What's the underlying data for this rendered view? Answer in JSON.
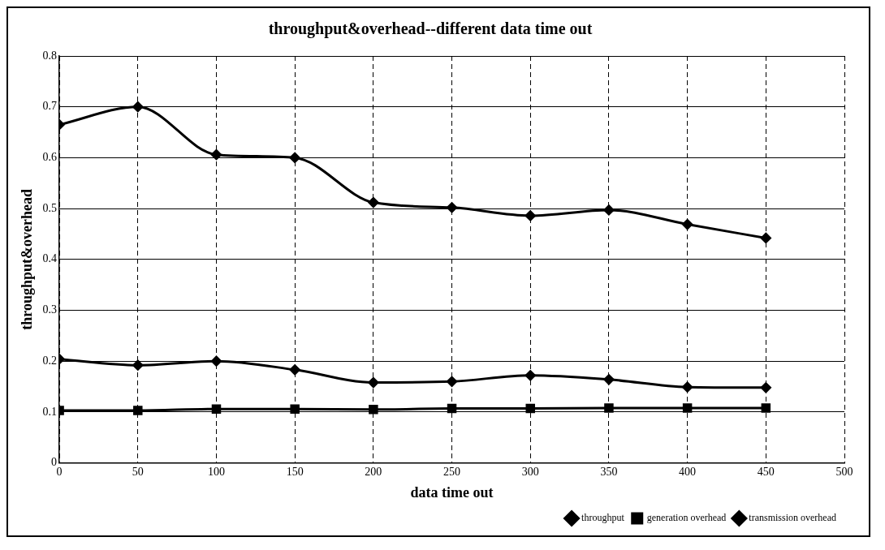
{
  "chart_data": {
    "type": "line",
    "title": "throughput&overhead--different data time out",
    "xlabel": "data time out",
    "ylabel": "throughput&overhead",
    "x": [
      0,
      50,
      100,
      150,
      200,
      250,
      300,
      350,
      400,
      450
    ],
    "series": [
      {
        "name": "throughput",
        "color": "#000000",
        "marker": "diamond",
        "values": [
          0.665,
          0.7,
          0.606,
          0.6,
          0.512,
          0.502,
          0.486,
          0.497,
          0.469,
          0.442
        ]
      },
      {
        "name": "generation overhead",
        "color": "#000000",
        "marker": "square",
        "values": [
          0.103,
          0.103,
          0.106,
          0.106,
          0.105,
          0.107,
          0.107,
          0.108,
          0.108,
          0.108
        ]
      },
      {
        "name": "transmission overhead",
        "color": "#000000",
        "marker": "diamond",
        "values": [
          0.204,
          0.192,
          0.2,
          0.183,
          0.158,
          0.16,
          0.172,
          0.164,
          0.149,
          0.148
        ]
      }
    ],
    "xlim": [
      0,
      500
    ],
    "xticks": [
      0,
      50,
      100,
      150,
      200,
      250,
      300,
      350,
      400,
      450,
      500
    ],
    "ylim": [
      0,
      0.8
    ],
    "yticks": [
      0,
      0.1,
      0.2,
      0.3,
      0.4,
      0.5,
      0.6,
      0.7,
      0.8
    ],
    "grid": true,
    "legend": "bottom right",
    "line_style": "solid"
  }
}
